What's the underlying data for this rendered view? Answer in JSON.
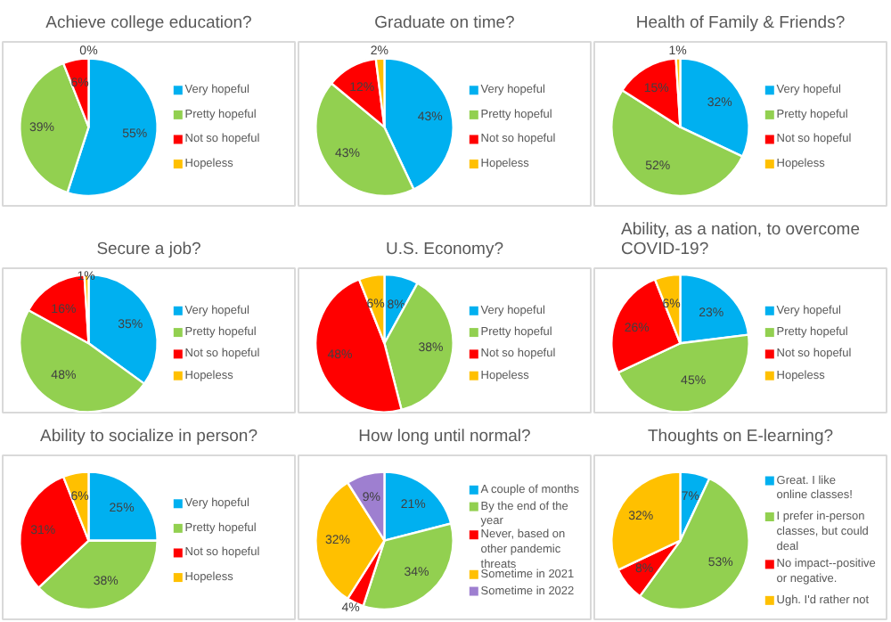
{
  "chart_data": [
    {
      "type": "pie",
      "title": "Achieve college education?",
      "categories": [
        "Very hopeful",
        "Pretty hopeful",
        "Not so hopeful",
        "Hopeless"
      ],
      "values": [
        55,
        39,
        6,
        0
      ],
      "value_labels": [
        "55%",
        "39%",
        "6%",
        "0%"
      ],
      "colors": [
        "#00b0f0",
        "#92d050",
        "#ff0000",
        "#ffc000"
      ],
      "legend": "right"
    },
    {
      "type": "pie",
      "title": "Graduate on time?",
      "categories": [
        "Very hopeful",
        "Pretty hopeful",
        "Not so hopeful",
        "Hopeless"
      ],
      "values": [
        43,
        43,
        12,
        2
      ],
      "value_labels": [
        "43%",
        "43%",
        "12%",
        "2%"
      ],
      "colors": [
        "#00b0f0",
        "#92d050",
        "#ff0000",
        "#ffc000"
      ],
      "legend": "right"
    },
    {
      "type": "pie",
      "title": "Health of Family & Friends?",
      "categories": [
        "Very hopeful",
        "Pretty hopeful",
        "Not so hopeful",
        "Hopeless"
      ],
      "values": [
        32,
        52,
        15,
        1
      ],
      "value_labels": [
        "32%",
        "52%",
        "15%",
        "1%"
      ],
      "colors": [
        "#00b0f0",
        "#92d050",
        "#ff0000",
        "#ffc000"
      ],
      "legend": "right"
    },
    {
      "type": "pie",
      "title": "Secure a job?",
      "categories": [
        "Very hopeful",
        "Pretty hopeful",
        "Not so hopeful",
        "Hopeless"
      ],
      "values": [
        35,
        48,
        16,
        1
      ],
      "value_labels": [
        "35%",
        "48%",
        "16%",
        "1%"
      ],
      "colors": [
        "#00b0f0",
        "#92d050",
        "#ff0000",
        "#ffc000"
      ],
      "legend": "right"
    },
    {
      "type": "pie",
      "title": "U.S. Economy?",
      "categories": [
        "Very hopeful",
        "Pretty hopeful",
        "Not so hopeful",
        "Hopeless"
      ],
      "values": [
        8,
        38,
        48,
        6
      ],
      "value_labels": [
        "8%",
        "38%",
        "48%",
        "6%"
      ],
      "colors": [
        "#00b0f0",
        "#92d050",
        "#ff0000",
        "#ffc000"
      ],
      "legend": "right"
    },
    {
      "type": "pie",
      "title": "Ability, as a nation, to overcome COVID-19?",
      "categories": [
        "Very hopeful",
        "Pretty hopeful",
        "Not so hopeful",
        "Hopeless"
      ],
      "values": [
        23,
        45,
        26,
        6
      ],
      "value_labels": [
        "23%",
        "45%",
        "26%",
        "6%"
      ],
      "colors": [
        "#00b0f0",
        "#92d050",
        "#ff0000",
        "#ffc000"
      ],
      "legend": "right"
    },
    {
      "type": "pie",
      "title": "Ability to socialize in person?",
      "categories": [
        "Very hopeful",
        "Pretty hopeful",
        "Not so hopeful",
        "Hopeless"
      ],
      "values": [
        25,
        38,
        31,
        6
      ],
      "value_labels": [
        "25%",
        "38%",
        "31%",
        "6%"
      ],
      "colors": [
        "#00b0f0",
        "#92d050",
        "#ff0000",
        "#ffc000"
      ],
      "legend": "right"
    },
    {
      "type": "pie",
      "title": "How long until normal?",
      "categories": [
        "A couple of months",
        "By the end of the year",
        "Never, based on other pandemic threats",
        "Sometime in 2021",
        "Sometime in 2022"
      ],
      "values": [
        21,
        34,
        4,
        32,
        9
      ],
      "value_labels": [
        "21%",
        "34%",
        "4%",
        "32%",
        "9%"
      ],
      "colors": [
        "#00b0f0",
        "#92d050",
        "#ff0000",
        "#ffc000",
        "#9e7fd0"
      ],
      "legend": "right"
    },
    {
      "type": "pie",
      "title": "Thoughts on E-learning?",
      "categories": [
        "Great. I like online classes!",
        "I prefer in-person classes, but could deal",
        "No impact--positive or negative.",
        "Ugh. I'd rather not"
      ],
      "values": [
        7,
        53,
        8,
        32
      ],
      "value_labels": [
        "7%",
        "53%",
        "8%",
        "32%"
      ],
      "colors": [
        "#00b0f0",
        "#92d050",
        "#ff0000",
        "#ffc000"
      ],
      "legend": "right"
    }
  ]
}
